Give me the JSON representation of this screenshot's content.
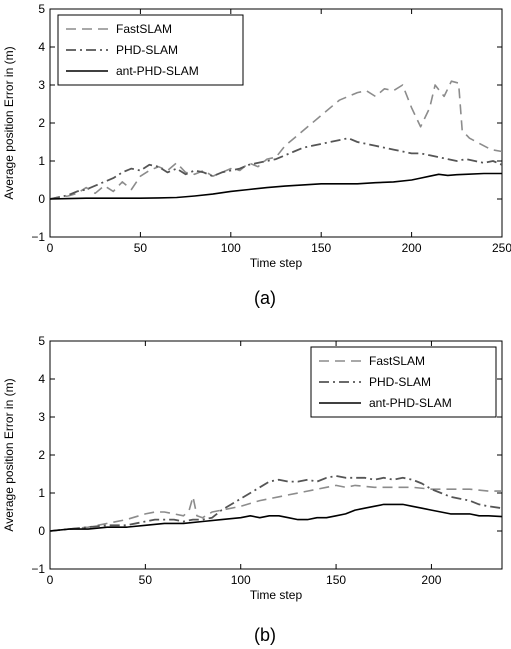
{
  "chart_data": [
    {
      "type": "line",
      "caption": "(a)",
      "xlabel": "Time step",
      "ylabel": "Average position Error in (m)",
      "xlim": [
        0,
        250
      ],
      "ylim": [
        -1,
        5
      ],
      "x_ticks": [
        0,
        50,
        100,
        150,
        200,
        250
      ],
      "y_ticks": [
        -1,
        0,
        1,
        2,
        3,
        4,
        5
      ],
      "grid": false,
      "legend_position": "top-left",
      "series": [
        {
          "name": "FastSLAM",
          "style": "dashed",
          "color": "#8c8c8c",
          "points": [
            [
              0,
              0
            ],
            [
              5,
              0.05
            ],
            [
              10,
              0.08
            ],
            [
              15,
              0.15
            ],
            [
              20,
              0.3
            ],
            [
              25,
              0.15
            ],
            [
              30,
              0.35
            ],
            [
              35,
              0.2
            ],
            [
              40,
              0.45
            ],
            [
              45,
              0.25
            ],
            [
              50,
              0.6
            ],
            [
              55,
              0.75
            ],
            [
              60,
              0.85
            ],
            [
              65,
              0.75
            ],
            [
              70,
              0.95
            ],
            [
              75,
              0.7
            ],
            [
              80,
              0.65
            ],
            [
              85,
              0.75
            ],
            [
              90,
              0.6
            ],
            [
              95,
              0.7
            ],
            [
              100,
              0.8
            ],
            [
              105,
              0.75
            ],
            [
              110,
              0.95
            ],
            [
              115,
              0.85
            ],
            [
              120,
              1.05
            ],
            [
              125,
              1.1
            ],
            [
              130,
              1.4
            ],
            [
              135,
              1.6
            ],
            [
              140,
              1.8
            ],
            [
              145,
              2.0
            ],
            [
              150,
              2.2
            ],
            [
              155,
              2.4
            ],
            [
              160,
              2.6
            ],
            [
              165,
              2.7
            ],
            [
              170,
              2.8
            ],
            [
              175,
              2.85
            ],
            [
              180,
              2.7
            ],
            [
              185,
              2.9
            ],
            [
              190,
              2.85
            ],
            [
              195,
              3.0
            ],
            [
              200,
              2.4
            ],
            [
              205,
              1.9
            ],
            [
              210,
              2.4
            ],
            [
              213,
              3.0
            ],
            [
              218,
              2.7
            ],
            [
              222,
              3.1
            ],
            [
              226,
              3.05
            ],
            [
              228,
              1.8
            ],
            [
              232,
              1.6
            ],
            [
              238,
              1.45
            ],
            [
              244,
              1.3
            ],
            [
              250,
              1.25
            ]
          ]
        },
        {
          "name": "PHD-SLAM",
          "style": "dashdot",
          "color": "#555555",
          "points": [
            [
              0,
              0
            ],
            [
              5,
              0.05
            ],
            [
              10,
              0.1
            ],
            [
              15,
              0.2
            ],
            [
              20,
              0.25
            ],
            [
              25,
              0.35
            ],
            [
              30,
              0.45
            ],
            [
              35,
              0.55
            ],
            [
              40,
              0.7
            ],
            [
              45,
              0.8
            ],
            [
              50,
              0.75
            ],
            [
              55,
              0.9
            ],
            [
              60,
              0.85
            ],
            [
              65,
              0.7
            ],
            [
              70,
              0.8
            ],
            [
              75,
              0.65
            ],
            [
              80,
              0.75
            ],
            [
              85,
              0.7
            ],
            [
              90,
              0.6
            ],
            [
              95,
              0.7
            ],
            [
              100,
              0.75
            ],
            [
              105,
              0.8
            ],
            [
              110,
              0.9
            ],
            [
              115,
              0.95
            ],
            [
              120,
              1.0
            ],
            [
              125,
              1.05
            ],
            [
              130,
              1.15
            ],
            [
              135,
              1.25
            ],
            [
              140,
              1.35
            ],
            [
              145,
              1.4
            ],
            [
              150,
              1.45
            ],
            [
              155,
              1.5
            ],
            [
              160,
              1.55
            ],
            [
              165,
              1.6
            ],
            [
              170,
              1.5
            ],
            [
              175,
              1.45
            ],
            [
              180,
              1.4
            ],
            [
              185,
              1.35
            ],
            [
              190,
              1.3
            ],
            [
              195,
              1.25
            ],
            [
              200,
              1.2
            ],
            [
              205,
              1.2
            ],
            [
              210,
              1.15
            ],
            [
              215,
              1.1
            ],
            [
              220,
              1.05
            ],
            [
              225,
              1.0
            ],
            [
              230,
              1.05
            ],
            [
              235,
              1.0
            ],
            [
              240,
              0.95
            ],
            [
              245,
              1.0
            ],
            [
              250,
              0.9
            ]
          ]
        },
        {
          "name": "ant-PHD-SLAM",
          "style": "solid",
          "color": "#000000",
          "points": [
            [
              0,
              0
            ],
            [
              10,
              0.01
            ],
            [
              20,
              0.02
            ],
            [
              30,
              0.02
            ],
            [
              40,
              0.02
            ],
            [
              50,
              0.02
            ],
            [
              60,
              0.03
            ],
            [
              70,
              0.04
            ],
            [
              80,
              0.08
            ],
            [
              90,
              0.13
            ],
            [
              100,
              0.2
            ],
            [
              110,
              0.25
            ],
            [
              120,
              0.3
            ],
            [
              130,
              0.34
            ],
            [
              140,
              0.37
            ],
            [
              150,
              0.4
            ],
            [
              160,
              0.4
            ],
            [
              170,
              0.4
            ],
            [
              180,
              0.43
            ],
            [
              190,
              0.45
            ],
            [
              200,
              0.5
            ],
            [
              205,
              0.55
            ],
            [
              210,
              0.6
            ],
            [
              215,
              0.65
            ],
            [
              220,
              0.62
            ],
            [
              225,
              0.64
            ],
            [
              230,
              0.65
            ],
            [
              240,
              0.67
            ],
            [
              250,
              0.67
            ]
          ]
        }
      ]
    },
    {
      "type": "line",
      "caption": "(b)",
      "xlabel": "Time step",
      "ylabel": "Average position Error in (m)",
      "xlim": [
        0,
        237
      ],
      "ylim": [
        -1,
        5
      ],
      "x_ticks": [
        0,
        50,
        100,
        150,
        200
      ],
      "y_ticks": [
        -1,
        0,
        1,
        2,
        3,
        4,
        5
      ],
      "grid": false,
      "legend_position": "top-right",
      "series": [
        {
          "name": "FastSLAM",
          "style": "dashed",
          "color": "#8c8c8c",
          "points": [
            [
              0,
              0
            ],
            [
              10,
              0.05
            ],
            [
              20,
              0.1
            ],
            [
              30,
              0.2
            ],
            [
              40,
              0.3
            ],
            [
              50,
              0.45
            ],
            [
              55,
              0.5
            ],
            [
              60,
              0.5
            ],
            [
              65,
              0.45
            ],
            [
              70,
              0.4
            ],
            [
              73,
              0.55
            ],
            [
              75,
              0.9
            ],
            [
              77,
              0.4
            ],
            [
              80,
              0.35
            ],
            [
              85,
              0.5
            ],
            [
              90,
              0.55
            ],
            [
              100,
              0.65
            ],
            [
              110,
              0.8
            ],
            [
              115,
              0.85
            ],
            [
              120,
              0.9
            ],
            [
              125,
              0.95
            ],
            [
              130,
              1.0
            ],
            [
              135,
              1.05
            ],
            [
              140,
              1.1
            ],
            [
              145,
              1.15
            ],
            [
              150,
              1.2
            ],
            [
              155,
              1.15
            ],
            [
              160,
              1.2
            ],
            [
              170,
              1.15
            ],
            [
              180,
              1.15
            ],
            [
              190,
              1.15
            ],
            [
              200,
              1.1
            ],
            [
              210,
              1.1
            ],
            [
              220,
              1.1
            ],
            [
              230,
              1.05
            ],
            [
              237,
              1.05
            ]
          ]
        },
        {
          "name": "PHD-SLAM",
          "style": "dashdot",
          "color": "#555555",
          "points": [
            [
              0,
              0
            ],
            [
              10,
              0.05
            ],
            [
              20,
              0.1
            ],
            [
              30,
              0.15
            ],
            [
              40,
              0.15
            ],
            [
              50,
              0.25
            ],
            [
              55,
              0.3
            ],
            [
              60,
              0.3
            ],
            [
              65,
              0.3
            ],
            [
              70,
              0.25
            ],
            [
              75,
              0.3
            ],
            [
              80,
              0.3
            ],
            [
              85,
              0.35
            ],
            [
              90,
              0.55
            ],
            [
              95,
              0.7
            ],
            [
              100,
              0.85
            ],
            [
              105,
              1.0
            ],
            [
              110,
              1.15
            ],
            [
              115,
              1.3
            ],
            [
              120,
              1.35
            ],
            [
              125,
              1.3
            ],
            [
              130,
              1.3
            ],
            [
              135,
              1.35
            ],
            [
              140,
              1.3
            ],
            [
              145,
              1.4
            ],
            [
              150,
              1.45
            ],
            [
              155,
              1.4
            ],
            [
              160,
              1.4
            ],
            [
              165,
              1.4
            ],
            [
              170,
              1.35
            ],
            [
              175,
              1.4
            ],
            [
              180,
              1.35
            ],
            [
              185,
              1.4
            ],
            [
              190,
              1.35
            ],
            [
              195,
              1.25
            ],
            [
              200,
              1.1
            ],
            [
              205,
              1.0
            ],
            [
              210,
              0.9
            ],
            [
              215,
              0.85
            ],
            [
              220,
              0.8
            ],
            [
              225,
              0.7
            ],
            [
              230,
              0.65
            ],
            [
              237,
              0.6
            ]
          ]
        },
        {
          "name": "ant-PHD-SLAM",
          "style": "solid",
          "color": "#000000",
          "points": [
            [
              0,
              0
            ],
            [
              10,
              0.05
            ],
            [
              20,
              0.05
            ],
            [
              30,
              0.1
            ],
            [
              40,
              0.1
            ],
            [
              50,
              0.15
            ],
            [
              60,
              0.2
            ],
            [
              70,
              0.2
            ],
            [
              80,
              0.25
            ],
            [
              90,
              0.3
            ],
            [
              100,
              0.35
            ],
            [
              105,
              0.4
            ],
            [
              110,
              0.35
            ],
            [
              115,
              0.4
            ],
            [
              120,
              0.4
            ],
            [
              125,
              0.35
            ],
            [
              130,
              0.3
            ],
            [
              135,
              0.3
            ],
            [
              140,
              0.35
            ],
            [
              145,
              0.35
            ],
            [
              150,
              0.4
            ],
            [
              155,
              0.45
            ],
            [
              160,
              0.55
            ],
            [
              165,
              0.6
            ],
            [
              170,
              0.65
            ],
            [
              175,
              0.7
            ],
            [
              180,
              0.7
            ],
            [
              185,
              0.7
            ],
            [
              190,
              0.65
            ],
            [
              195,
              0.6
            ],
            [
              200,
              0.55
            ],
            [
              205,
              0.5
            ],
            [
              210,
              0.45
            ],
            [
              215,
              0.45
            ],
            [
              220,
              0.45
            ],
            [
              225,
              0.4
            ],
            [
              230,
              0.4
            ],
            [
              237,
              0.38
            ]
          ]
        }
      ]
    }
  ]
}
